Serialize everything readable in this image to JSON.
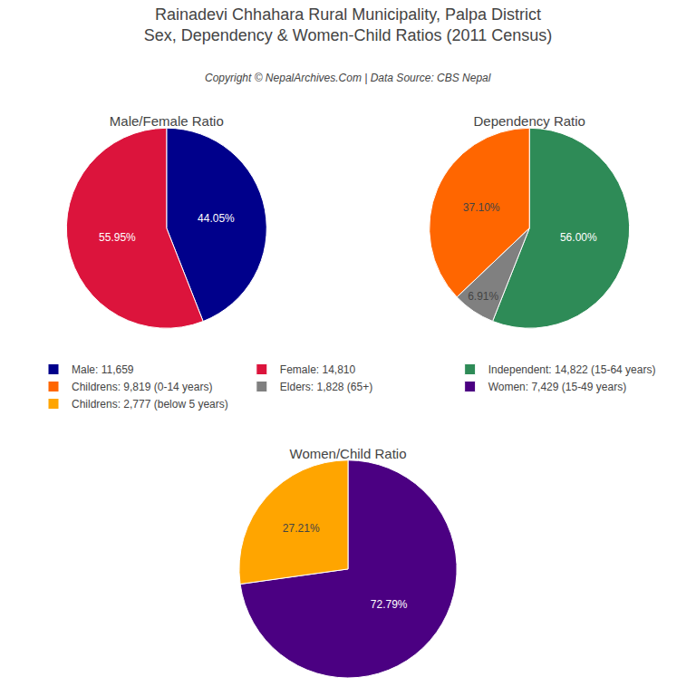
{
  "title": [
    "Rainadevi Chhahara Rural Municipality, Palpa District",
    "Sex, Dependency & Women-Child Ratios (2011 Census)"
  ],
  "subtitle": "Copyright © NepalArchives.Com | Data Source: CBS Nepal",
  "legend": "center",
  "chart_data": [
    {
      "type": "pie",
      "title": "Male/Female Ratio",
      "categories": [
        "Male: 11,659",
        "Female: 14,810"
      ],
      "values": [
        44.05,
        55.95
      ],
      "value_labels": [
        "44.05%",
        "55.95%"
      ],
      "colors": [
        "#00008B",
        "#DC143C"
      ],
      "data_labels": true
    },
    {
      "type": "pie",
      "title": "Dependency Ratio",
      "categories": [
        "Independent: 14,822 (15-64 years)",
        "Childrens: 9,819 (0-14 years)",
        "Elders: 1,828 (65+)"
      ],
      "values": [
        56.0,
        37.1,
        6.91
      ],
      "value_labels": [
        "56.00%",
        "37.10%",
        "6.91%"
      ],
      "colors": [
        "#2E8B57",
        "#FF6600",
        "#808080"
      ],
      "data_labels": true
    },
    {
      "type": "pie",
      "title": "Women/Child Ratio",
      "categories": [
        "Women: 7,429 (15-49 years)",
        "Childrens: 2,777 (below 5 years)"
      ],
      "values": [
        72.79,
        27.21
      ],
      "value_labels": [
        "72.79%",
        "27.21%"
      ],
      "colors": [
        "#4B0082",
        "#FFA500"
      ],
      "data_labels": true
    }
  ]
}
